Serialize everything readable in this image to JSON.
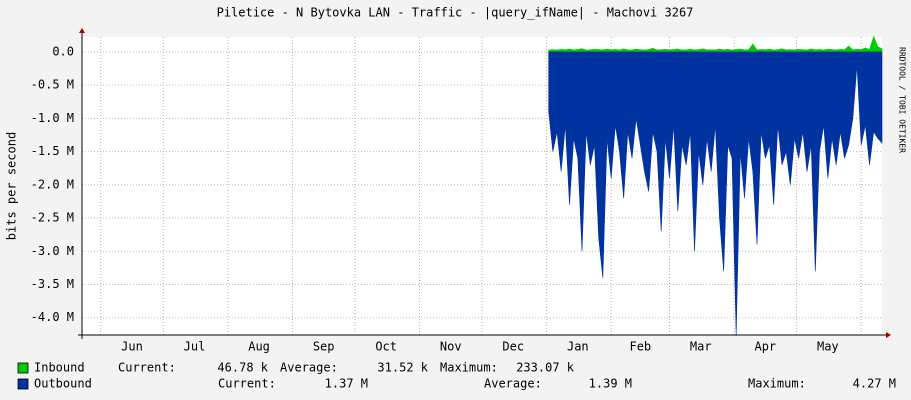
{
  "chart_data": {
    "type": "area",
    "title": "Piletice - N Bytovka LAN - Traffic - |query_ifName| - Machovi 3267",
    "y_label": "bits per second",
    "watermark": "RRDTOOL / TOBI OETIKER",
    "xlim": [
      0,
      384
    ],
    "xticks": [
      {
        "value": 24,
        "label": "Jun"
      },
      {
        "value": 54,
        "label": "Jul"
      },
      {
        "value": 85,
        "label": "Aug"
      },
      {
        "value": 116,
        "label": "Sep"
      },
      {
        "value": 146,
        "label": "Oct"
      },
      {
        "value": 177,
        "label": "Nov"
      },
      {
        "value": 207,
        "label": "Dec"
      },
      {
        "value": 238,
        "label": "Jan"
      },
      {
        "value": 268,
        "label": "Feb"
      },
      {
        "value": 297,
        "label": "Mar"
      },
      {
        "value": 328,
        "label": "Apr"
      },
      {
        "value": 358,
        "label": "May"
      }
    ],
    "xgrid": [
      9,
      39,
      70,
      101,
      131,
      162,
      192,
      223,
      254,
      282,
      313,
      343,
      374
    ],
    "ylim": [
      -4260000,
      225000
    ],
    "yticks": [
      {
        "value": 0,
        "label": "0.0"
      },
      {
        "value": -500000,
        "label": "-0.5 M"
      },
      {
        "value": -1000000,
        "label": "-1.0 M"
      },
      {
        "value": -1500000,
        "label": "-1.5 M"
      },
      {
        "value": -2000000,
        "label": "-2.0 M"
      },
      {
        "value": -2500000,
        "label": "-2.5 M"
      },
      {
        "value": -3000000,
        "label": "-3.0 M"
      },
      {
        "value": -3500000,
        "label": "-3.5 M"
      },
      {
        "value": -4000000,
        "label": "-4.0 M"
      }
    ],
    "grid": true,
    "x": [
      224,
      226,
      228,
      230,
      232,
      234,
      236,
      238,
      240,
      242,
      244,
      246,
      248,
      250,
      252,
      254,
      256,
      258,
      260,
      262,
      264,
      266,
      268,
      270,
      272,
      274,
      276,
      278,
      280,
      282,
      284,
      286,
      288,
      290,
      292,
      294,
      296,
      298,
      300,
      302,
      304,
      306,
      308,
      310,
      312,
      314,
      316,
      318,
      320,
      322,
      324,
      326,
      328,
      330,
      332,
      334,
      336,
      338,
      340,
      342,
      344,
      346,
      348,
      350,
      352,
      354,
      356,
      358,
      360,
      362,
      364,
      366,
      368,
      370,
      372,
      374,
      376,
      378,
      380,
      382,
      384
    ],
    "series": [
      {
        "name": "Inbound",
        "color": "#00cc00",
        "stats": [
          {
            "label": "Current:",
            "value": "46.78 k"
          },
          {
            "label": "Average:",
            "value": "31.52 k"
          },
          {
            "label": "Maximum:",
            "value": "233.07 k"
          }
        ],
        "values": [
          30000,
          35000,
          28000,
          40000,
          32000,
          45000,
          30000,
          38000,
          50000,
          29000,
          33000,
          41000,
          36000,
          30000,
          44000,
          31000,
          39000,
          28000,
          47000,
          33000,
          30000,
          42000,
          35000,
          29000,
          38000,
          55000,
          31000,
          34000,
          40000,
          30000,
          36000,
          45000,
          29000,
          33000,
          41000,
          30000,
          37000,
          48000,
          31000,
          35000,
          30000,
          43000,
          32000,
          39000,
          28000,
          36000,
          44000,
          31000,
          34000,
          120000,
          30000,
          38000,
          33000,
          41000,
          29000,
          36000,
          47000,
          32000,
          35000,
          30000,
          40000,
          34000,
          31000,
          45000,
          33000,
          38000,
          29000,
          42000,
          36000,
          31000,
          39000,
          34000,
          90000,
          30000,
          41000,
          35000,
          60000,
          38000,
          233070,
          80000,
          46780
        ]
      },
      {
        "name": "Outbound",
        "color": "#0033a0",
        "stats": [
          {
            "label": "Current:",
            "value": "1.37 M"
          },
          {
            "label": "Average:",
            "value": "1.39 M"
          },
          {
            "label": "Maximum:",
            "value": "4.27 M"
          }
        ],
        "values": [
          -900000,
          -1500000,
          -1200000,
          -1800000,
          -1100000,
          -2300000,
          -1300000,
          -1600000,
          -3000000,
          -1200000,
          -1700000,
          -1400000,
          -2800000,
          -3400000,
          -1300000,
          -1900000,
          -1100000,
          -1500000,
          -2200000,
          -1200000,
          -1600000,
          -1000000,
          -1400000,
          -1800000,
          -2100000,
          -1200000,
          -1500000,
          -2700000,
          -1300000,
          -1900000,
          -1100000,
          -2400000,
          -1400000,
          -1700000,
          -1200000,
          -3000000,
          -1500000,
          -2000000,
          -1300000,
          -1800000,
          -1100000,
          -2500000,
          -3300000,
          -1400000,
          -1600000,
          -4270000,
          -1500000,
          -2200000,
          -1300000,
          -1800000,
          -2900000,
          -1200000,
          -1600000,
          -1400000,
          -2300000,
          -1100000,
          -1700000,
          -1500000,
          -2000000,
          -1300000,
          -1600000,
          -1200000,
          -1800000,
          -1400000,
          -3300000,
          -1500000,
          -1100000,
          -1900000,
          -1300000,
          -1700000,
          -1200000,
          -1600000,
          -1400000,
          -1000000,
          -200000,
          -1400000,
          -1100000,
          -1700000,
          -1200000,
          -1300000,
          -1370000
        ]
      }
    ]
  }
}
